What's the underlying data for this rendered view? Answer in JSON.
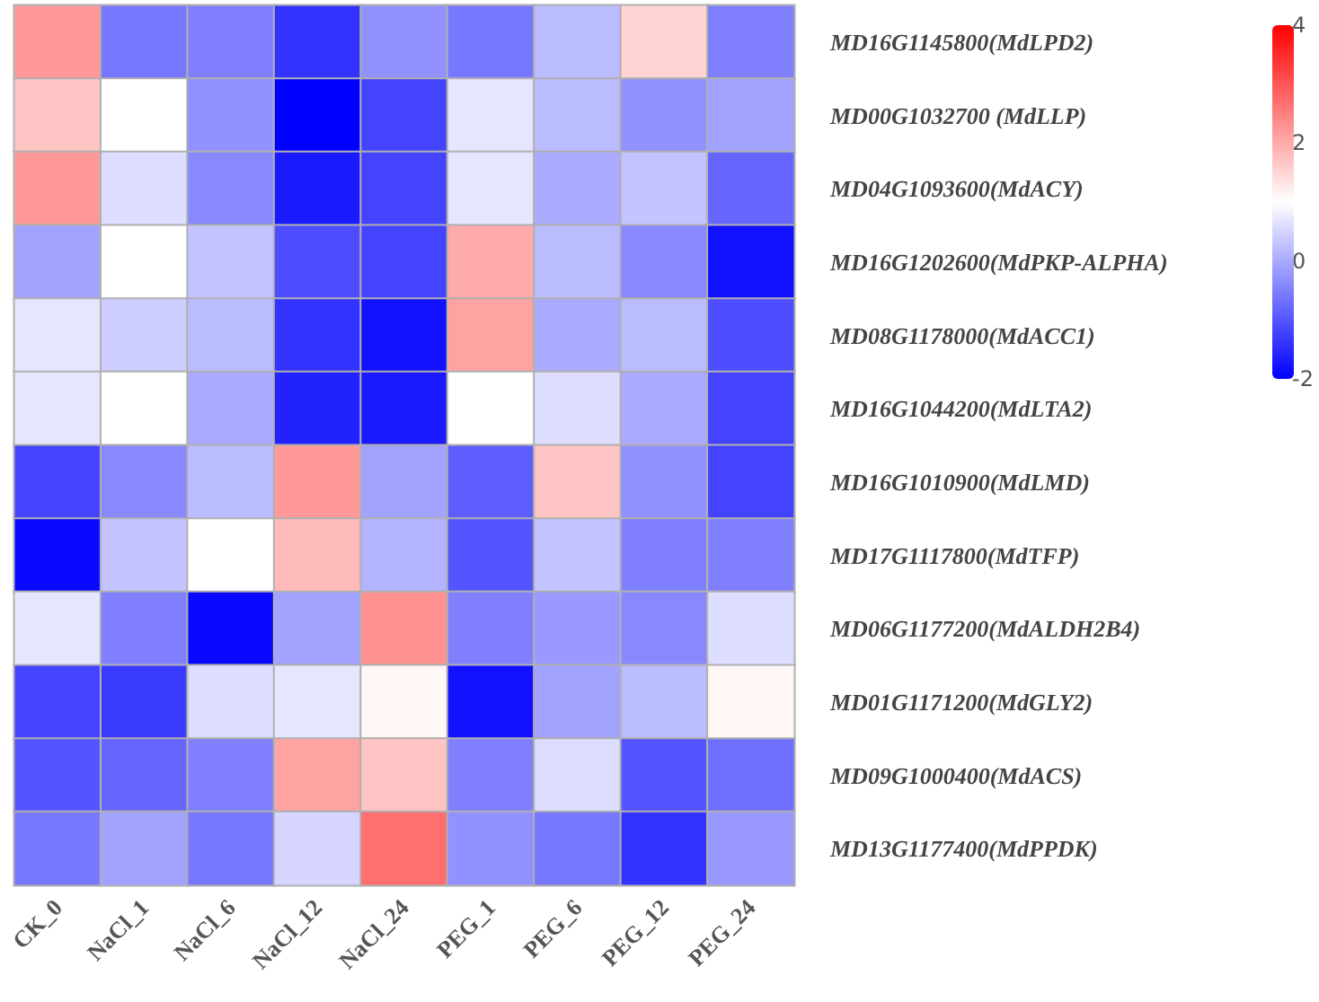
{
  "chart_data": {
    "type": "heatmap",
    "categories": [
      "CK_0",
      "NaCl_1",
      "NaCl_6",
      "NaCl_12",
      "NaCl_24",
      "PEG_1",
      "PEG_6",
      "PEG_12",
      "PEG_24"
    ],
    "y_categories": [
      "MD16G1145800(MdLPD2)",
      "MD00G1032700 (MdLLP)",
      "MD04G1093600(MdACY)",
      "MD16G1202600(MdPKP-ALPHA)",
      "MD08G1178000(MdACC1)",
      "MD16G1044200(MdLTA2)",
      "MD16G1010900(MdLMD)",
      "MD17G1117800(MdTFP)",
      "MD06G1177200(MdALDH2B4)",
      "MD01G1171200(MdGLY2)",
      "MD09G1000400(MdACS)",
      "MD13G1177400(MdPPDK)"
    ],
    "cells": [
      [
        2.2,
        -0.6,
        -0.5,
        -1.4,
        -0.3,
        -0.6,
        0.2,
        1.5,
        -0.5
      ],
      [
        1.7,
        1.0,
        -0.3,
        -2.0,
        -1.2,
        0.7,
        0.2,
        -0.3,
        -0.1
      ],
      [
        2.2,
        0.6,
        -0.4,
        -1.7,
        -1.2,
        0.7,
        0.0,
        0.3,
        -0.8
      ],
      [
        -0.1,
        1.0,
        0.3,
        -1.1,
        -1.2,
        2.0,
        0.2,
        -0.4,
        -1.8
      ],
      [
        0.7,
        0.4,
        0.2,
        -1.4,
        -1.8,
        2.1,
        0.0,
        0.2,
        -1.1
      ],
      [
        0.7,
        1.0,
        0.0,
        -1.6,
        -1.7,
        1.0,
        0.6,
        0.0,
        -1.2
      ],
      [
        -1.2,
        -0.4,
        0.2,
        2.2,
        -0.1,
        -0.9,
        1.7,
        -0.3,
        -1.2
      ],
      [
        -1.9,
        0.3,
        1.0,
        1.8,
        0.1,
        -1.0,
        0.3,
        -0.5,
        -0.5
      ],
      [
        0.7,
        -0.5,
        -1.9,
        -0.1,
        2.3,
        -0.5,
        -0.2,
        -0.4,
        0.6
      ],
      [
        -1.2,
        -1.3,
        0.6,
        0.7,
        1.1,
        -1.8,
        -0.1,
        0.2,
        1.1
      ],
      [
        -1.0,
        -0.8,
        -0.5,
        2.1,
        1.7,
        -0.5,
        0.6,
        -1.0,
        -0.7
      ],
      [
        -0.6,
        -0.1,
        -0.6,
        0.5,
        2.7,
        -0.3,
        -0.6,
        -1.4,
        -0.2
      ]
    ],
    "clim": [
      -2,
      4
    ],
    "cticks": [
      -2,
      0,
      2,
      4
    ]
  }
}
